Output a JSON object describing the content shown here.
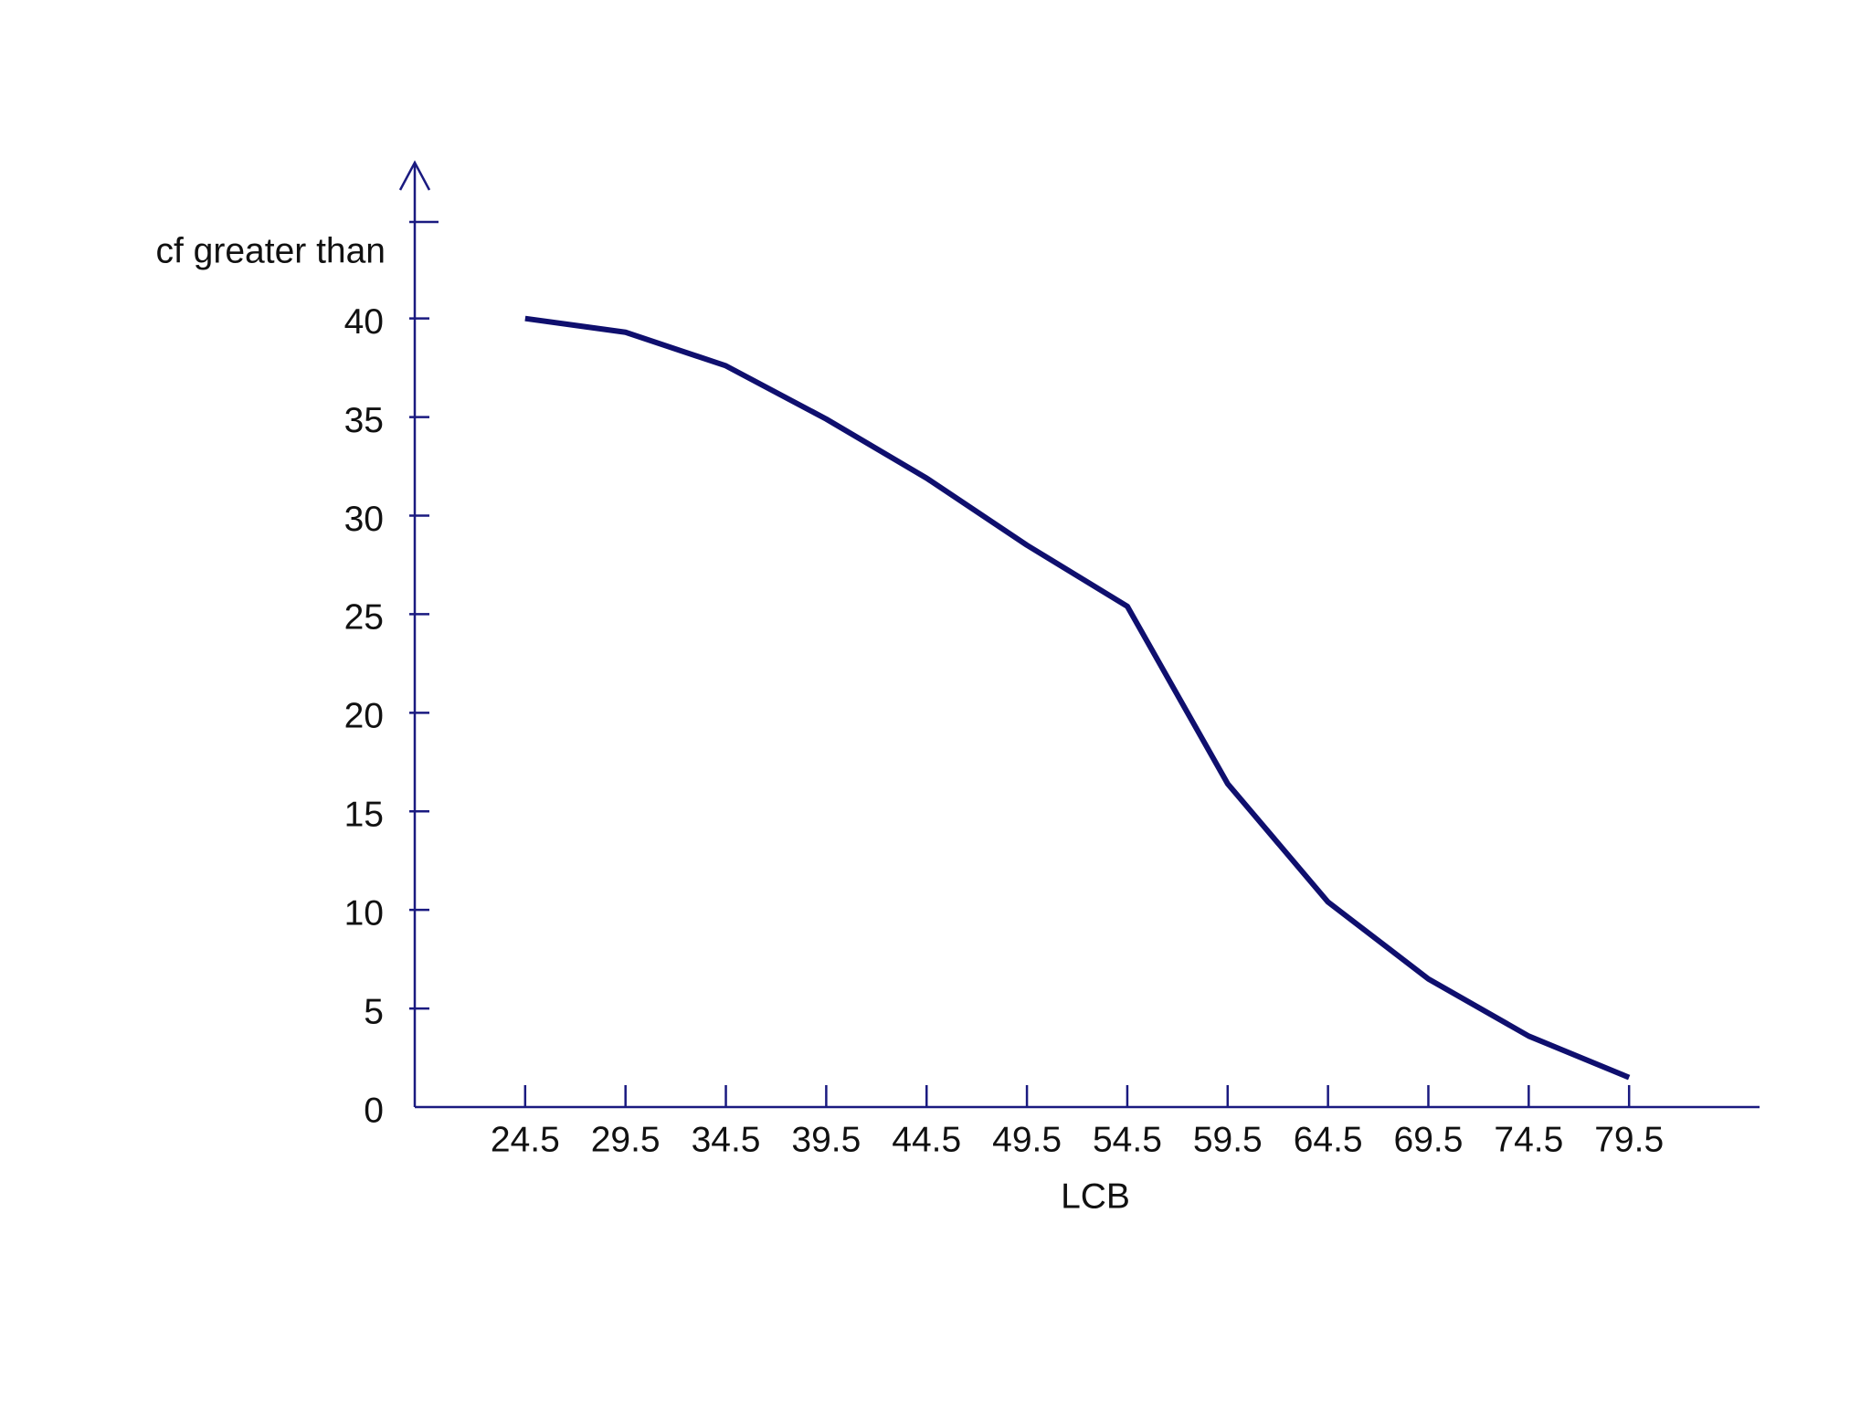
{
  "chart_data": {
    "type": "line",
    "x_label": "LCB",
    "y_label": "cf greater than",
    "x": [
      24.5,
      29.5,
      34.5,
      39.5,
      44.5,
      49.5,
      54.5,
      59.5,
      64.5,
      69.5,
      74.5,
      79.5
    ],
    "series": [
      {
        "name": "cf greater than",
        "color": "#0f0f6e",
        "values": [
          40,
          39.3,
          37.6,
          34.9,
          31.9,
          28.5,
          25.4,
          16.4,
          10.4,
          6.5,
          3.6,
          1.5
        ]
      }
    ],
    "xlim": [
      19,
      86
    ],
    "xticks": [
      24.5,
      29.5,
      34.5,
      39.5,
      44.5,
      49.5,
      54.5,
      59.5,
      64.5,
      69.5,
      74.5,
      79.5
    ],
    "ylim": [
      0,
      48
    ],
    "yticks": [
      0,
      5,
      10,
      15,
      20,
      25,
      30,
      35,
      40
    ],
    "grid": false
  }
}
